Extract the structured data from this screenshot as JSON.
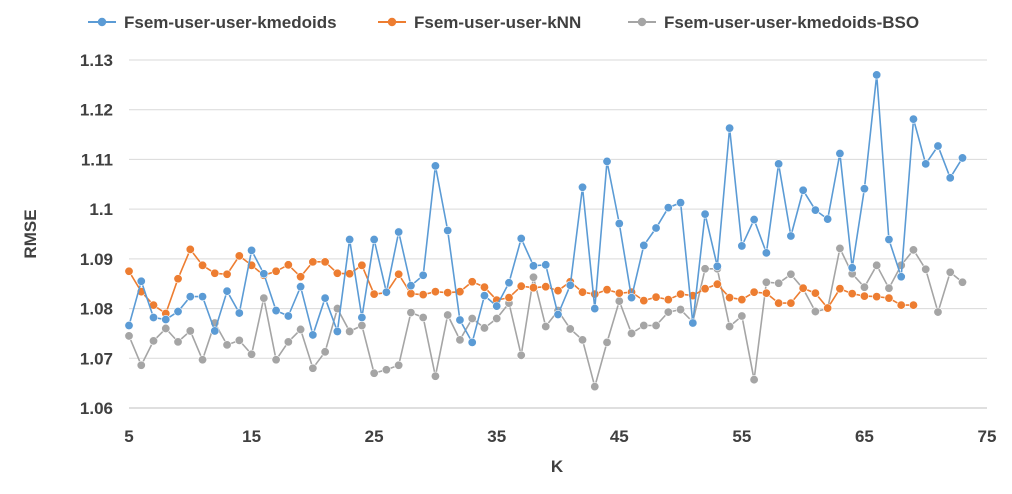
{
  "chart_data": {
    "type": "line",
    "xlabel": "K",
    "ylabel": "RMSE",
    "xlim": [
      5,
      75
    ],
    "ylim": [
      1.06,
      1.13
    ],
    "x_ticks": [
      5,
      15,
      25,
      35,
      45,
      55,
      65,
      75
    ],
    "y_ticks": [
      1.06,
      1.07,
      1.08,
      1.09,
      1.1,
      1.11,
      1.12,
      1.13
    ],
    "x_tick_labels": [
      "5",
      "15",
      "25",
      "35",
      "45",
      "55",
      "65",
      "75"
    ],
    "y_tick_labels": [
      "1.06",
      "1.07",
      "1.08",
      "1.09",
      "1.1",
      "1.11",
      "1.12",
      "1.13"
    ],
    "grid": true,
    "legend_position": "top",
    "series": [
      {
        "name": "Fsem-user-user-kmedoids",
        "color": "#5B9BD5",
        "x": [
          5,
          6,
          7,
          8,
          9,
          10,
          11,
          12,
          13,
          14,
          15,
          16,
          17,
          18,
          19,
          20,
          21,
          22,
          23,
          24,
          25,
          26,
          27,
          28,
          29,
          30,
          31,
          32,
          33,
          34,
          35,
          36,
          37,
          38,
          39,
          40,
          41,
          42,
          43,
          44,
          45,
          46,
          47,
          48,
          49,
          50,
          51,
          52,
          53,
          54,
          55,
          56,
          57,
          58,
          59,
          60,
          61,
          62,
          63,
          64,
          65,
          66,
          67,
          68,
          69,
          70,
          71,
          72,
          73
        ],
        "y": [
          1.0766,
          1.0855,
          1.0782,
          1.0778,
          1.0794,
          1.0824,
          1.0824,
          1.0755,
          1.0835,
          1.0791,
          1.0917,
          1.087,
          1.0796,
          1.0785,
          1.0844,
          1.0747,
          1.0821,
          1.0754,
          1.0939,
          1.0782,
          1.0939,
          1.0833,
          1.0954,
          1.0846,
          1.0867,
          1.1087,
          1.0957,
          1.0777,
          1.0732,
          1.0826,
          1.0805,
          1.0852,
          1.0941,
          1.0886,
          1.0888,
          1.0788,
          1.0847,
          1.1044,
          1.08,
          1.1096,
          1.0971,
          1.0822,
          1.0927,
          1.0962,
          1.1003,
          1.1013,
          1.0771,
          1.099,
          1.0885,
          1.1163,
          1.0926,
          1.0979,
          1.0912,
          1.1091,
          1.0946,
          1.1038,
          1.0998,
          1.098,
          1.1112,
          1.0882,
          1.1041,
          1.127,
          1.0939,
          1.0864,
          1.1181,
          1.1091,
          1.1127,
          1.1063,
          1.1103
        ]
      },
      {
        "name": "Fsem-user-user-kNN",
        "color": "#ED7D31",
        "x": [
          5,
          6,
          7,
          8,
          9,
          10,
          11,
          12,
          13,
          14,
          15,
          16,
          17,
          18,
          19,
          20,
          21,
          22,
          23,
          24,
          25,
          26,
          27,
          28,
          29,
          30,
          31,
          32,
          33,
          34,
          35,
          36,
          37,
          38,
          39,
          40,
          41,
          42,
          43,
          44,
          45,
          46,
          47,
          48,
          49,
          50,
          51,
          52,
          53,
          54,
          55,
          56,
          57,
          58,
          59,
          60,
          61,
          62,
          63,
          64,
          65,
          66,
          67,
          68,
          69
        ],
        "y": [
          1.0875,
          1.0834,
          1.0807,
          1.079,
          1.086,
          1.0919,
          1.0887,
          1.0871,
          1.0869,
          1.0906,
          1.0887,
          1.0867,
          1.0875,
          1.0888,
          1.0864,
          1.0894,
          1.0894,
          1.0871,
          1.087,
          1.0887,
          1.0829,
          1.0832,
          1.0869,
          1.083,
          1.0828,
          1.0834,
          1.0832,
          1.0834,
          1.0854,
          1.0843,
          1.0817,
          1.0822,
          1.0845,
          1.0842,
          1.0844,
          1.0836,
          1.0854,
          1.0833,
          1.0829,
          1.0838,
          1.0831,
          1.0833,
          1.0816,
          1.0823,
          1.0818,
          1.0829,
          1.0826,
          1.084,
          1.0849,
          1.0822,
          1.0818,
          1.0833,
          1.0831,
          1.0811,
          1.0811,
          1.0841,
          1.0831,
          1.0801,
          1.084,
          1.083,
          1.0825,
          1.0824,
          1.0821,
          1.0807,
          1.0807
        ]
      },
      {
        "name": "Fsem-user-user-kmedoids-BSO",
        "color": "#A5A5A5",
        "x": [
          5,
          6,
          7,
          8,
          9,
          10,
          11,
          12,
          13,
          14,
          15,
          16,
          17,
          18,
          19,
          20,
          21,
          22,
          23,
          24,
          25,
          26,
          27,
          28,
          29,
          30,
          31,
          32,
          33,
          34,
          35,
          36,
          37,
          38,
          39,
          40,
          41,
          42,
          43,
          44,
          45,
          46,
          47,
          48,
          49,
          50,
          51,
          52,
          53,
          54,
          55,
          56,
          57,
          58,
          59,
          60,
          61,
          62,
          63,
          64,
          65,
          66,
          67,
          68,
          69,
          70,
          71,
          72,
          73
        ],
        "y": [
          1.0745,
          1.0686,
          1.0735,
          1.076,
          1.0733,
          1.0755,
          1.0697,
          1.0771,
          1.0727,
          1.0736,
          1.0708,
          1.0821,
          1.0697,
          1.0733,
          1.0758,
          1.068,
          1.0713,
          1.08,
          1.0754,
          1.0766,
          1.067,
          1.0677,
          1.0686,
          1.0792,
          1.0782,
          1.0664,
          1.0787,
          1.0737,
          1.078,
          1.0761,
          1.078,
          1.0811,
          1.0706,
          1.0863,
          1.0764,
          1.0796,
          1.0759,
          1.0737,
          1.0643,
          1.0732,
          1.0815,
          1.075,
          1.0766,
          1.0766,
          1.0793,
          1.0798,
          1.0773,
          1.088,
          1.088,
          1.0764,
          1.0785,
          1.0657,
          1.0853,
          1.0851,
          1.0869,
          1.084,
          1.0794,
          1.08,
          1.0921,
          1.087,
          1.0843,
          1.0887,
          1.0841,
          1.0887,
          1.0918,
          1.0879,
          1.0793,
          1.0873,
          1.0853
        ]
      }
    ]
  }
}
